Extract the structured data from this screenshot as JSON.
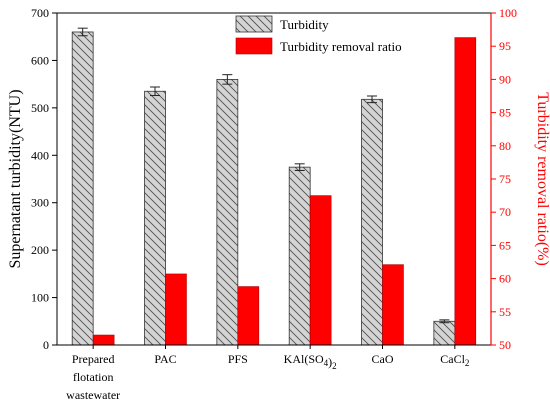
{
  "chart_data": {
    "type": "bar",
    "categories": [
      [
        "Prepared",
        "flotation",
        "wastewater"
      ],
      [
        "PAC"
      ],
      [
        "PFS"
      ],
      [
        "KAl(SO",
        {
          "sub": "4"
        },
        ")",
        {
          "sub": "2"
        }
      ],
      [
        "CaO"
      ],
      [
        "CaCl",
        {
          "sub": "2"
        }
      ]
    ],
    "series": [
      {
        "name": "Turbidity",
        "axis": "left",
        "values": [
          660,
          535,
          560,
          375,
          518,
          50
        ],
        "errors": [
          8,
          9,
          10,
          7,
          7,
          3
        ],
        "fill": "hatch",
        "color": "#808080"
      },
      {
        "name": "Turbidity removal ratio",
        "axis": "right",
        "values": [
          51.5,
          60.7,
          58.8,
          72.5,
          62.1,
          96.3
        ],
        "fill": "solid",
        "color": "#ff0000"
      }
    ],
    "ylabel": "Supernatant turbidity(NTU)",
    "ylim": [
      0,
      700
    ],
    "yticks": [
      0,
      100,
      200,
      300,
      400,
      500,
      600,
      700
    ],
    "y2label": "Turbidity removal ratio(%)",
    "y2lim": [
      50,
      100
    ],
    "y2ticks": [
      50,
      55,
      60,
      65,
      70,
      75,
      80,
      85,
      90,
      95,
      100
    ],
    "y2color": "#ff0000",
    "legend": "top-center",
    "grid": false
  }
}
